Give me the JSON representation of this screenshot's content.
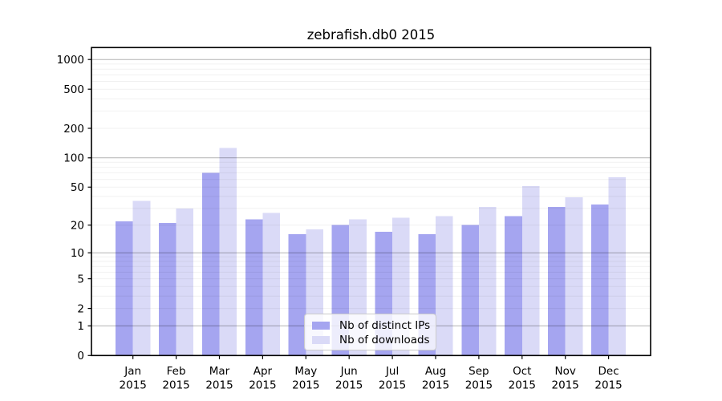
{
  "chart_data": {
    "type": "bar",
    "title": "zebrafish.db0 2015",
    "categories": [
      "Jan",
      "Feb",
      "Mar",
      "Apr",
      "May",
      "Jun",
      "Jul",
      "Aug",
      "Sep",
      "Oct",
      "Nov",
      "Dec"
    ],
    "category_year": "2015",
    "series": [
      {
        "name": "Nb of distinct IPs",
        "color": "#a5a5f0",
        "values": [
          22,
          21,
          70,
          23,
          16,
          20,
          17,
          16,
          20,
          25,
          31,
          33
        ]
      },
      {
        "name": "Nb of downloads",
        "color": "#dadaf7",
        "values": [
          36,
          30,
          126,
          27,
          18,
          23,
          24,
          25,
          31,
          51,
          39,
          63
        ]
      }
    ],
    "xlabel": "",
    "ylabel": "",
    "yscale": "log10(1+value)",
    "ylim": [
      0,
      1300
    ],
    "yticks": [
      0,
      1,
      2,
      5,
      10,
      20,
      50,
      100,
      200,
      500,
      1000
    ],
    "grid": {
      "major_at": [
        1,
        10,
        100,
        1000
      ],
      "minor": "2-9 per decade",
      "drawn_over_bars": true
    },
    "legend_position": "lower center inside plot"
  }
}
